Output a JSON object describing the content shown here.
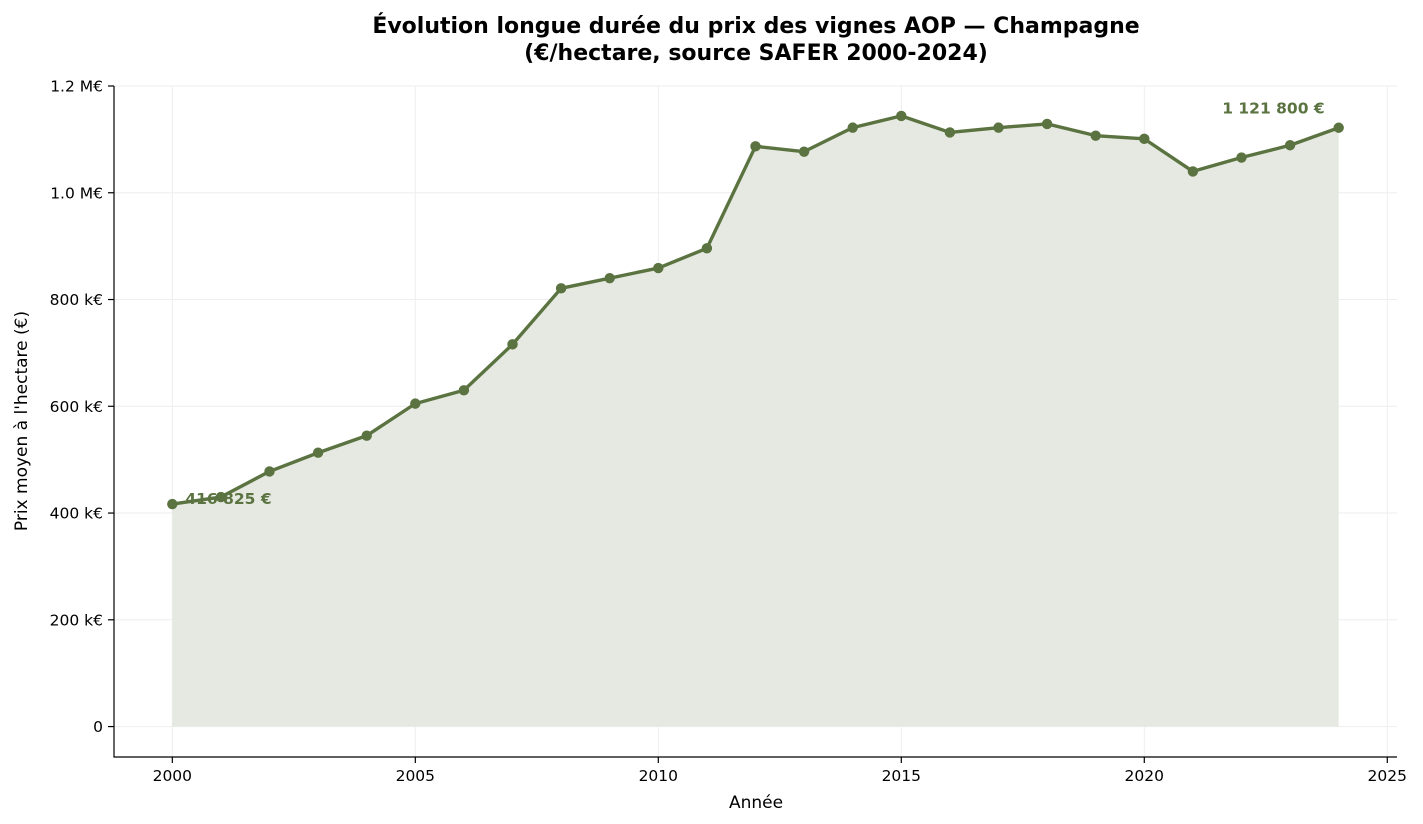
{
  "chart_data": {
    "type": "line",
    "title_lines": [
      "Évolution longue durée du prix des vignes AOP — Champagne",
      "(€/hectare, source SAFER 2000-2024)"
    ],
    "xlabel": "Année",
    "ylabel": "Prix moyen à l'hectare (€)",
    "xlim": [
      1998.8,
      2025.2
    ],
    "ylim": [
      -57000,
      1200000
    ],
    "x_ticks": [
      2000,
      2005,
      2010,
      2015,
      2020,
      2025
    ],
    "x_tick_labels": [
      "2000",
      "2005",
      "2010",
      "2015",
      "2020",
      "2025"
    ],
    "y_ticks": [
      0,
      200000,
      400000,
      600000,
      800000,
      1000000,
      1200000
    ],
    "y_tick_labels": [
      "0",
      "200 k€",
      "400 k€",
      "600 k€",
      "800 k€",
      "1.0 M€",
      "1.2 M€"
    ],
    "grid": true,
    "area_fill": true,
    "colors": {
      "line": "#5a7340",
      "fill": "#e6e9e1",
      "grid": "#eeeeee"
    },
    "series": [
      {
        "x": [
          2000,
          2001,
          2002,
          2003,
          2004,
          2005,
          2006,
          2007,
          2008,
          2009,
          2010,
          2011,
          2012,
          2013,
          2014,
          2015,
          2016,
          2017,
          2018,
          2019,
          2020,
          2021,
          2022,
          2023,
          2024
        ],
        "values": [
          416825,
          430000,
          478000,
          513000,
          545000,
          605000,
          630000,
          716000,
          821000,
          840000,
          859000,
          896000,
          1087000,
          1077000,
          1122000,
          1144000,
          1113000,
          1122000,
          1129000,
          1107000,
          1101000,
          1040000,
          1066000,
          1089000,
          1121800
        ]
      }
    ],
    "annotations": [
      {
        "text": "416 825 €",
        "x": 2000,
        "y": 416825,
        "anchor": "start"
      },
      {
        "text": "1 121 800 €",
        "x": 2024,
        "y": 1121800,
        "anchor": "end"
      }
    ]
  }
}
